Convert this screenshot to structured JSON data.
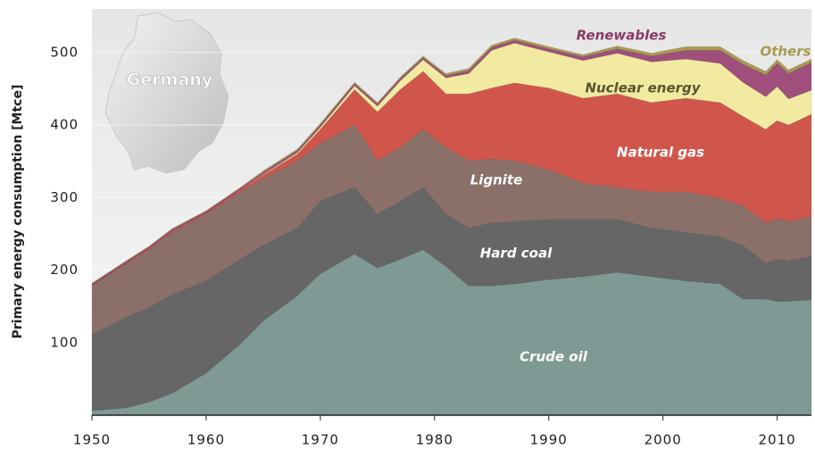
{
  "chart_data": {
    "type": "stacked_area",
    "y_label": "Primary energy consumption [Mtce]",
    "annotation": "Germany",
    "x": [
      1950,
      1953,
      1955,
      1957,
      1960,
      1963,
      1965,
      1968,
      1970,
      1973,
      1975,
      1977,
      1979,
      1981,
      1983,
      1985,
      1987,
      1990,
      1993,
      1996,
      1999,
      2002,
      2005,
      2007,
      2009,
      2010,
      2011,
      2013
    ],
    "series": [
      {
        "name": "Crude oil",
        "color": "#7f9a94",
        "values": [
          6,
          10,
          18,
          30,
          58,
          98,
          130,
          165,
          195,
          222,
          203,
          215,
          228,
          205,
          178,
          178,
          181,
          187,
          191,
          197,
          191,
          185,
          181,
          160,
          160,
          157,
          157,
          159
        ]
      },
      {
        "name": "Hard coal",
        "color": "#666666",
        "values": [
          105,
          125,
          130,
          136,
          127,
          117,
          104,
          93,
          100,
          92,
          74,
          80,
          86,
          72,
          80,
          87,
          86,
          83,
          79,
          73,
          67,
          67,
          65,
          74,
          49,
          58,
          56,
          60
        ]
      },
      {
        "name": "Lignite",
        "color": "#8a7068",
        "values": [
          67,
          74,
          80,
          86,
          92,
          93,
          92,
          93,
          80,
          86,
          74,
          74,
          80,
          92,
          93,
          88,
          84,
          68,
          50,
          44,
          50,
          56,
          53,
          55,
          56,
          56,
          54,
          55
        ]
      },
      {
        "name": "Natural gas",
        "color": "#d0564c",
        "values": [
          1,
          1,
          2,
          2,
          2,
          3,
          5,
          9,
          19,
          49,
          67,
          80,
          80,
          74,
          92,
          98,
          107,
          113,
          117,
          129,
          123,
          129,
          132,
          123,
          129,
          135,
          133,
          141
        ]
      },
      {
        "name": "Nuclear energy",
        "color": "#f2eaa0",
        "values": [
          0,
          0,
          0,
          0,
          0,
          0,
          1,
          2,
          3,
          5,
          8,
          12,
          16,
          22,
          28,
          52,
          55,
          50,
          52,
          56,
          56,
          54,
          54,
          47,
          45,
          47,
          36,
          33
        ]
      },
      {
        "name": "Renewables",
        "color": "#a04f7c",
        "values": [
          2,
          2,
          2,
          2,
          2,
          2,
          3,
          3,
          3,
          3,
          3,
          3,
          3,
          3,
          4,
          4,
          4,
          4,
          5,
          6,
          8,
          12,
          18,
          25,
          30,
          32,
          35,
          38
        ]
      },
      {
        "name": "Others",
        "color": "#a89a50",
        "values": [
          1,
          1,
          1,
          1,
          1,
          1,
          2,
          2,
          2,
          2,
          2,
          2,
          2,
          3,
          3,
          3,
          3,
          3,
          3,
          4,
          4,
          5,
          5,
          5,
          5,
          5,
          5,
          5
        ]
      }
    ],
    "xlim": [
      1950,
      2013
    ],
    "ylim": [
      0,
      560
    ],
    "xticks": [
      1950,
      1960,
      1970,
      1980,
      1990,
      2000,
      2010
    ],
    "yticks": [
      100,
      200,
      300,
      400,
      500
    ]
  }
}
